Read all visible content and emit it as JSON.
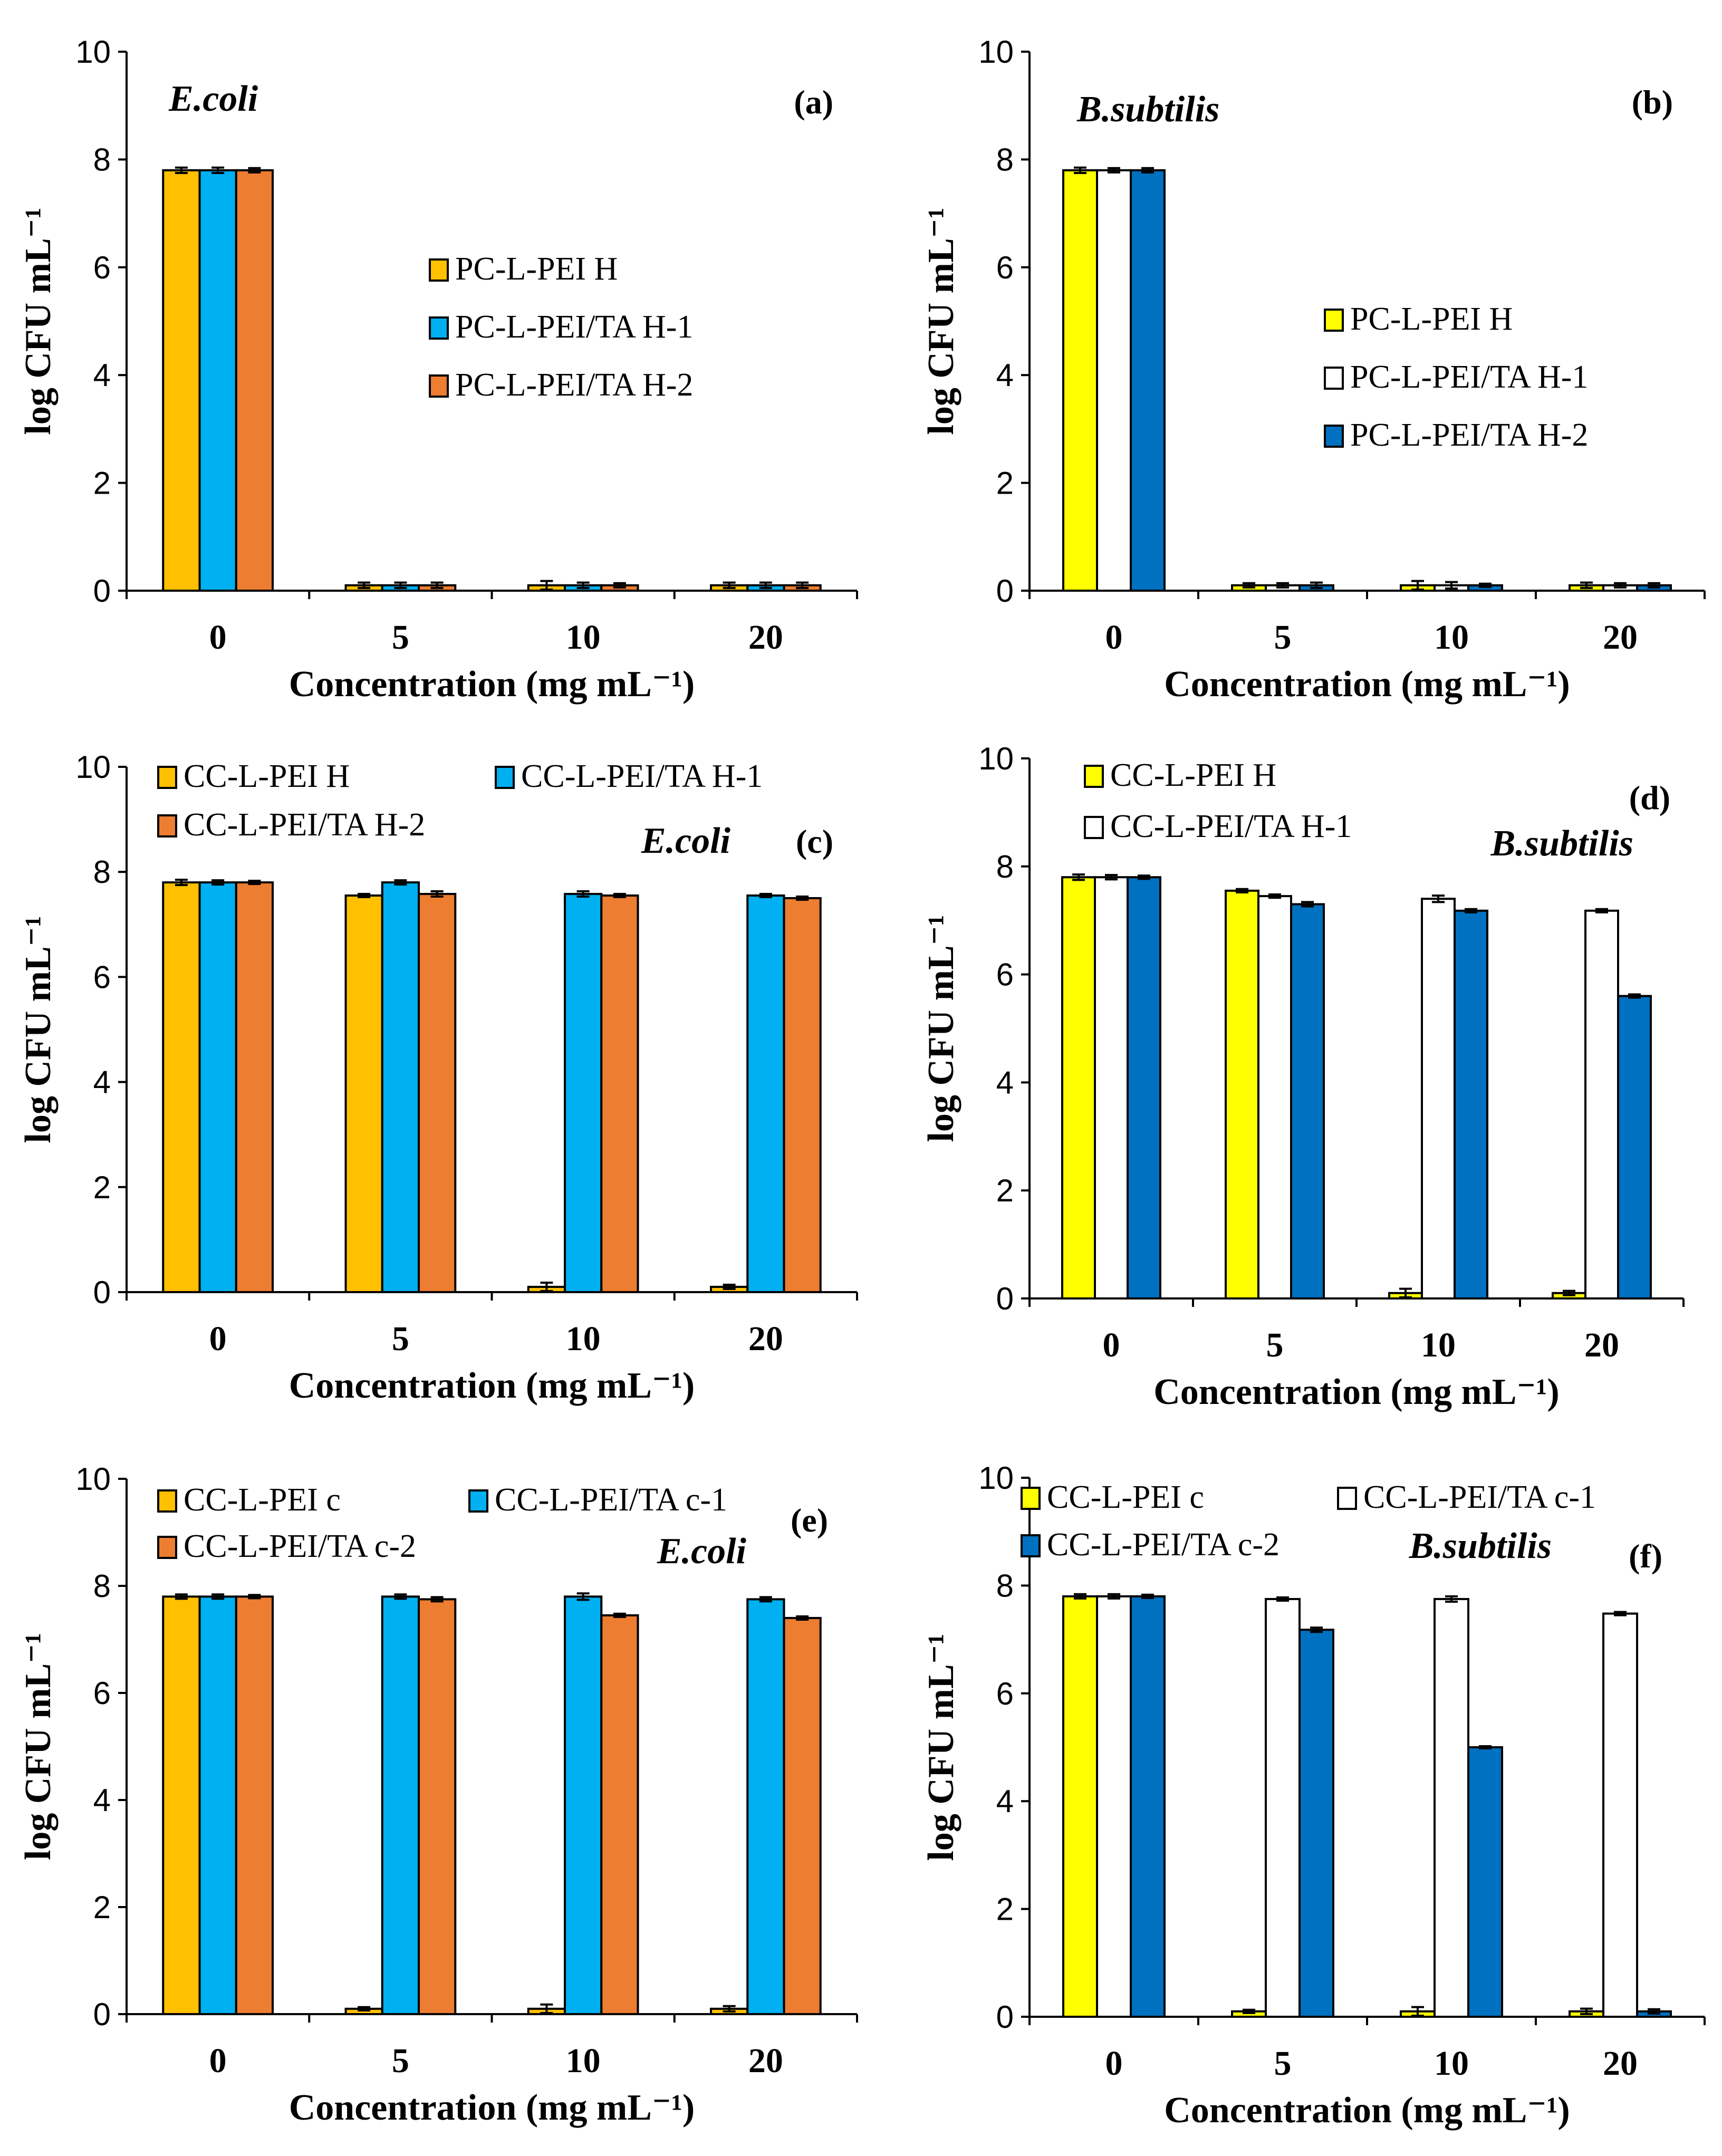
{
  "figure": {
    "ylabel": "log CFU mL⁻¹",
    "xlabel": "Concentration (mg mL⁻¹)"
  },
  "chart_data": [
    {
      "type": "bar",
      "panel_label": "(a)",
      "organism": "E.coli",
      "categories": [
        "0",
        "5",
        "10",
        "20"
      ],
      "ylim": [
        0,
        10
      ],
      "yticks": [
        0,
        2,
        4,
        6,
        8,
        10
      ],
      "xlabel": "Concentration (mg mL⁻¹)",
      "ylabel": "log CFU mL⁻¹",
      "legend_position": "center",
      "series": [
        {
          "name": "PC-L-PEI H",
          "color": "#FFC000",
          "values": [
            7.8,
            0.1,
            0.1,
            0.1
          ],
          "errors": [
            0.05,
            0.05,
            0.08,
            0.05
          ]
        },
        {
          "name": "PC-L-PEI/TA H-1",
          "color": "#00B0F0",
          "values": [
            7.8,
            0.1,
            0.1,
            0.1
          ],
          "errors": [
            0.05,
            0.05,
            0.05,
            0.05
          ]
        },
        {
          "name": "PC-L-PEI/TA H-2",
          "color": "#ED7D31",
          "values": [
            7.8,
            0.1,
            0.1,
            0.1
          ],
          "errors": [
            0.04,
            0.05,
            0.04,
            0.05
          ]
        }
      ]
    },
    {
      "type": "bar",
      "panel_label": "(b)",
      "organism": "B.subtilis",
      "categories": [
        "0",
        "5",
        "10",
        "20"
      ],
      "ylim": [
        0,
        10
      ],
      "yticks": [
        0,
        2,
        4,
        6,
        8,
        10
      ],
      "xlabel": "Concentration (mg mL⁻¹)",
      "ylabel": "log CFU mL⁻¹",
      "legend_position": "center-right",
      "series": [
        {
          "name": "PC-L-PEI H",
          "color": "#FFFF00",
          "values": [
            7.8,
            0.1,
            0.1,
            0.1
          ],
          "errors": [
            0.05,
            0.04,
            0.08,
            0.05
          ]
        },
        {
          "name": "PC-L-PEI/TA H-1",
          "color": "#FFFFFF",
          "values": [
            7.8,
            0.1,
            0.1,
            0.1
          ],
          "errors": [
            0.04,
            0.04,
            0.06,
            0.04
          ]
        },
        {
          "name": "PC-L-PEI/TA H-2",
          "color": "#0070C0",
          "values": [
            7.8,
            0.1,
            0.1,
            0.1
          ],
          "errors": [
            0.04,
            0.05,
            0.03,
            0.04
          ]
        }
      ]
    },
    {
      "type": "bar",
      "panel_label": "(c)",
      "organism": "E.coli",
      "categories": [
        "0",
        "5",
        "10",
        "20"
      ],
      "ylim": [
        0,
        10
      ],
      "yticks": [
        0,
        2,
        4,
        6,
        8,
        10
      ],
      "xlabel": "Concentration (mg mL⁻¹)",
      "ylabel": "log CFU mL⁻¹",
      "legend_position": "top",
      "series": [
        {
          "name": "CC-L-PEI H",
          "color": "#FFC000",
          "values": [
            7.8,
            7.55,
            0.1,
            0.1
          ],
          "errors": [
            0.05,
            0.03,
            0.08,
            0.04
          ]
        },
        {
          "name": "CC-L-PEI/TA H-1",
          "color": "#00B0F0",
          "values": [
            7.8,
            7.8,
            7.58,
            7.55
          ],
          "errors": [
            0.04,
            0.04,
            0.05,
            0.03
          ]
        },
        {
          "name": "CC-L-PEI/TA H-2",
          "color": "#ED7D31",
          "values": [
            7.8,
            7.58,
            7.55,
            7.5
          ],
          "errors": [
            0.03,
            0.05,
            0.03,
            0.03
          ]
        }
      ]
    },
    {
      "type": "bar",
      "panel_label": "(d)",
      "organism": "B.subtilis",
      "categories": [
        "0",
        "5",
        "10",
        "20"
      ],
      "ylim": [
        0,
        10
      ],
      "yticks": [
        0,
        2,
        4,
        6,
        8,
        10
      ],
      "xlabel": "Concentration (mg mL⁻¹)",
      "ylabel": "log CFU mL⁻¹",
      "legend_position": "top-left",
      "series": [
        {
          "name": "CC-L-PEI H",
          "color": "#FFFF00",
          "values": [
            7.8,
            7.55,
            0.1,
            0.1
          ],
          "errors": [
            0.05,
            0.03,
            0.08,
            0.04
          ]
        },
        {
          "name": "CC-L-PEI/TA H-1",
          "color": "#FFFFFF",
          "values": [
            7.8,
            7.45,
            7.4,
            7.18
          ],
          "errors": [
            0.04,
            0.03,
            0.06,
            0.03
          ]
        },
        {
          "name": "",
          "color": "#0070C0",
          "values": [
            7.8,
            7.3,
            7.18,
            5.6
          ],
          "errors": [
            0.03,
            0.04,
            0.03,
            0.03
          ]
        }
      ]
    },
    {
      "type": "bar",
      "panel_label": "(e)",
      "organism": "E.coli",
      "categories": [
        "0",
        "5",
        "10",
        "20"
      ],
      "ylim": [
        0,
        10
      ],
      "yticks": [
        0,
        2,
        4,
        6,
        8,
        10
      ],
      "xlabel": "Concentration (mg mL⁻¹)",
      "ylabel": "log CFU mL⁻¹",
      "legend_position": "top",
      "series": [
        {
          "name": "CC-L-PEI c",
          "color": "#FFC000",
          "values": [
            7.8,
            0.1,
            0.1,
            0.1
          ],
          "errors": [
            0.04,
            0.03,
            0.08,
            0.05
          ]
        },
        {
          "name": "CC-L-PEI/TA c-1",
          "color": "#00B0F0",
          "values": [
            7.8,
            7.8,
            7.8,
            7.75
          ],
          "errors": [
            0.04,
            0.04,
            0.06,
            0.04
          ]
        },
        {
          "name": "CC-L-PEI/TA c-2",
          "color": "#ED7D31",
          "values": [
            7.8,
            7.75,
            7.45,
            7.4
          ],
          "errors": [
            0.03,
            0.04,
            0.03,
            0.03
          ]
        }
      ]
    },
    {
      "type": "bar",
      "panel_label": "(f)",
      "organism": "B.subtilis",
      "categories": [
        "0",
        "5",
        "10",
        "20"
      ],
      "ylim": [
        0,
        10
      ],
      "yticks": [
        0,
        2,
        4,
        6,
        8,
        10
      ],
      "xlabel": "Concentration (mg mL⁻¹)",
      "ylabel": "log CFU mL⁻¹",
      "legend_position": "top",
      "series": [
        {
          "name": "CC-L-PEI c",
          "color": "#FFFF00",
          "values": [
            7.8,
            0.1,
            0.1,
            0.1
          ],
          "errors": [
            0.04,
            0.03,
            0.08,
            0.05
          ]
        },
        {
          "name": "CC-L-PEI/TA c-1",
          "color": "#FFFFFF",
          "values": [
            7.8,
            7.75,
            7.75,
            7.48
          ],
          "errors": [
            0.04,
            0.03,
            0.05,
            0.03
          ]
        },
        {
          "name": "CC-L-PEI/TA c-2",
          "color": "#0070C0",
          "values": [
            7.8,
            7.18,
            5.0,
            0.1
          ],
          "errors": [
            0.03,
            0.04,
            0.02,
            0.04
          ]
        }
      ]
    }
  ]
}
